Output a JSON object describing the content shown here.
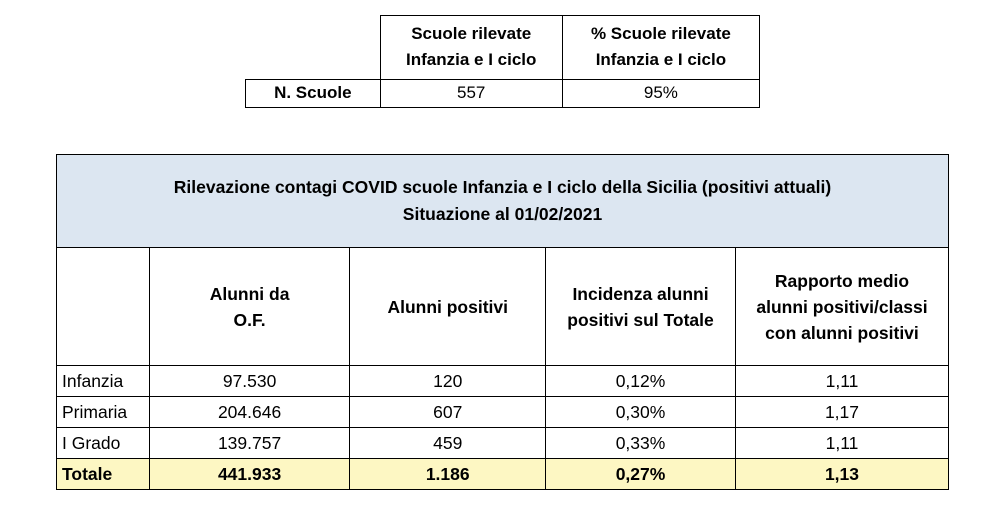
{
  "summary_table": {
    "headers": [
      [
        "Scuole rilevate",
        "Infanzia e I ciclo"
      ],
      [
        "% Scuole rilevate",
        "Infanzia e I ciclo"
      ]
    ],
    "row_label": "N. Scuole",
    "values": [
      "557",
      "95%"
    ]
  },
  "main_table": {
    "title_lines": [
      "Rilevazione contagi COVID scuole Infanzia e I ciclo della Sicilia (positivi attuali)",
      "Situazione al 01/02/2021"
    ],
    "columns": [
      [],
      [
        "Alunni da",
        "O.F."
      ],
      [
        "Alunni positivi"
      ],
      [
        "Incidenza alunni",
        "positivi sul Totale"
      ],
      [
        "Rapporto medio",
        "alunni positivi/classi",
        "con alunni positivi"
      ]
    ],
    "rows": [
      [
        "Infanzia",
        "97.530",
        "120",
        "0,12%",
        "1,11"
      ],
      [
        "Primaria",
        "204.646",
        "607",
        "0,30%",
        "1,17"
      ],
      [
        "I Grado",
        "139.757",
        "459",
        "0,33%",
        "1,11"
      ]
    ],
    "total": [
      "Totale",
      "441.933",
      "1.186",
      "0,27%",
      "1,13"
    ]
  },
  "colors": {
    "title_background": "#dce6f1",
    "total_background": "#fdf7c3"
  }
}
